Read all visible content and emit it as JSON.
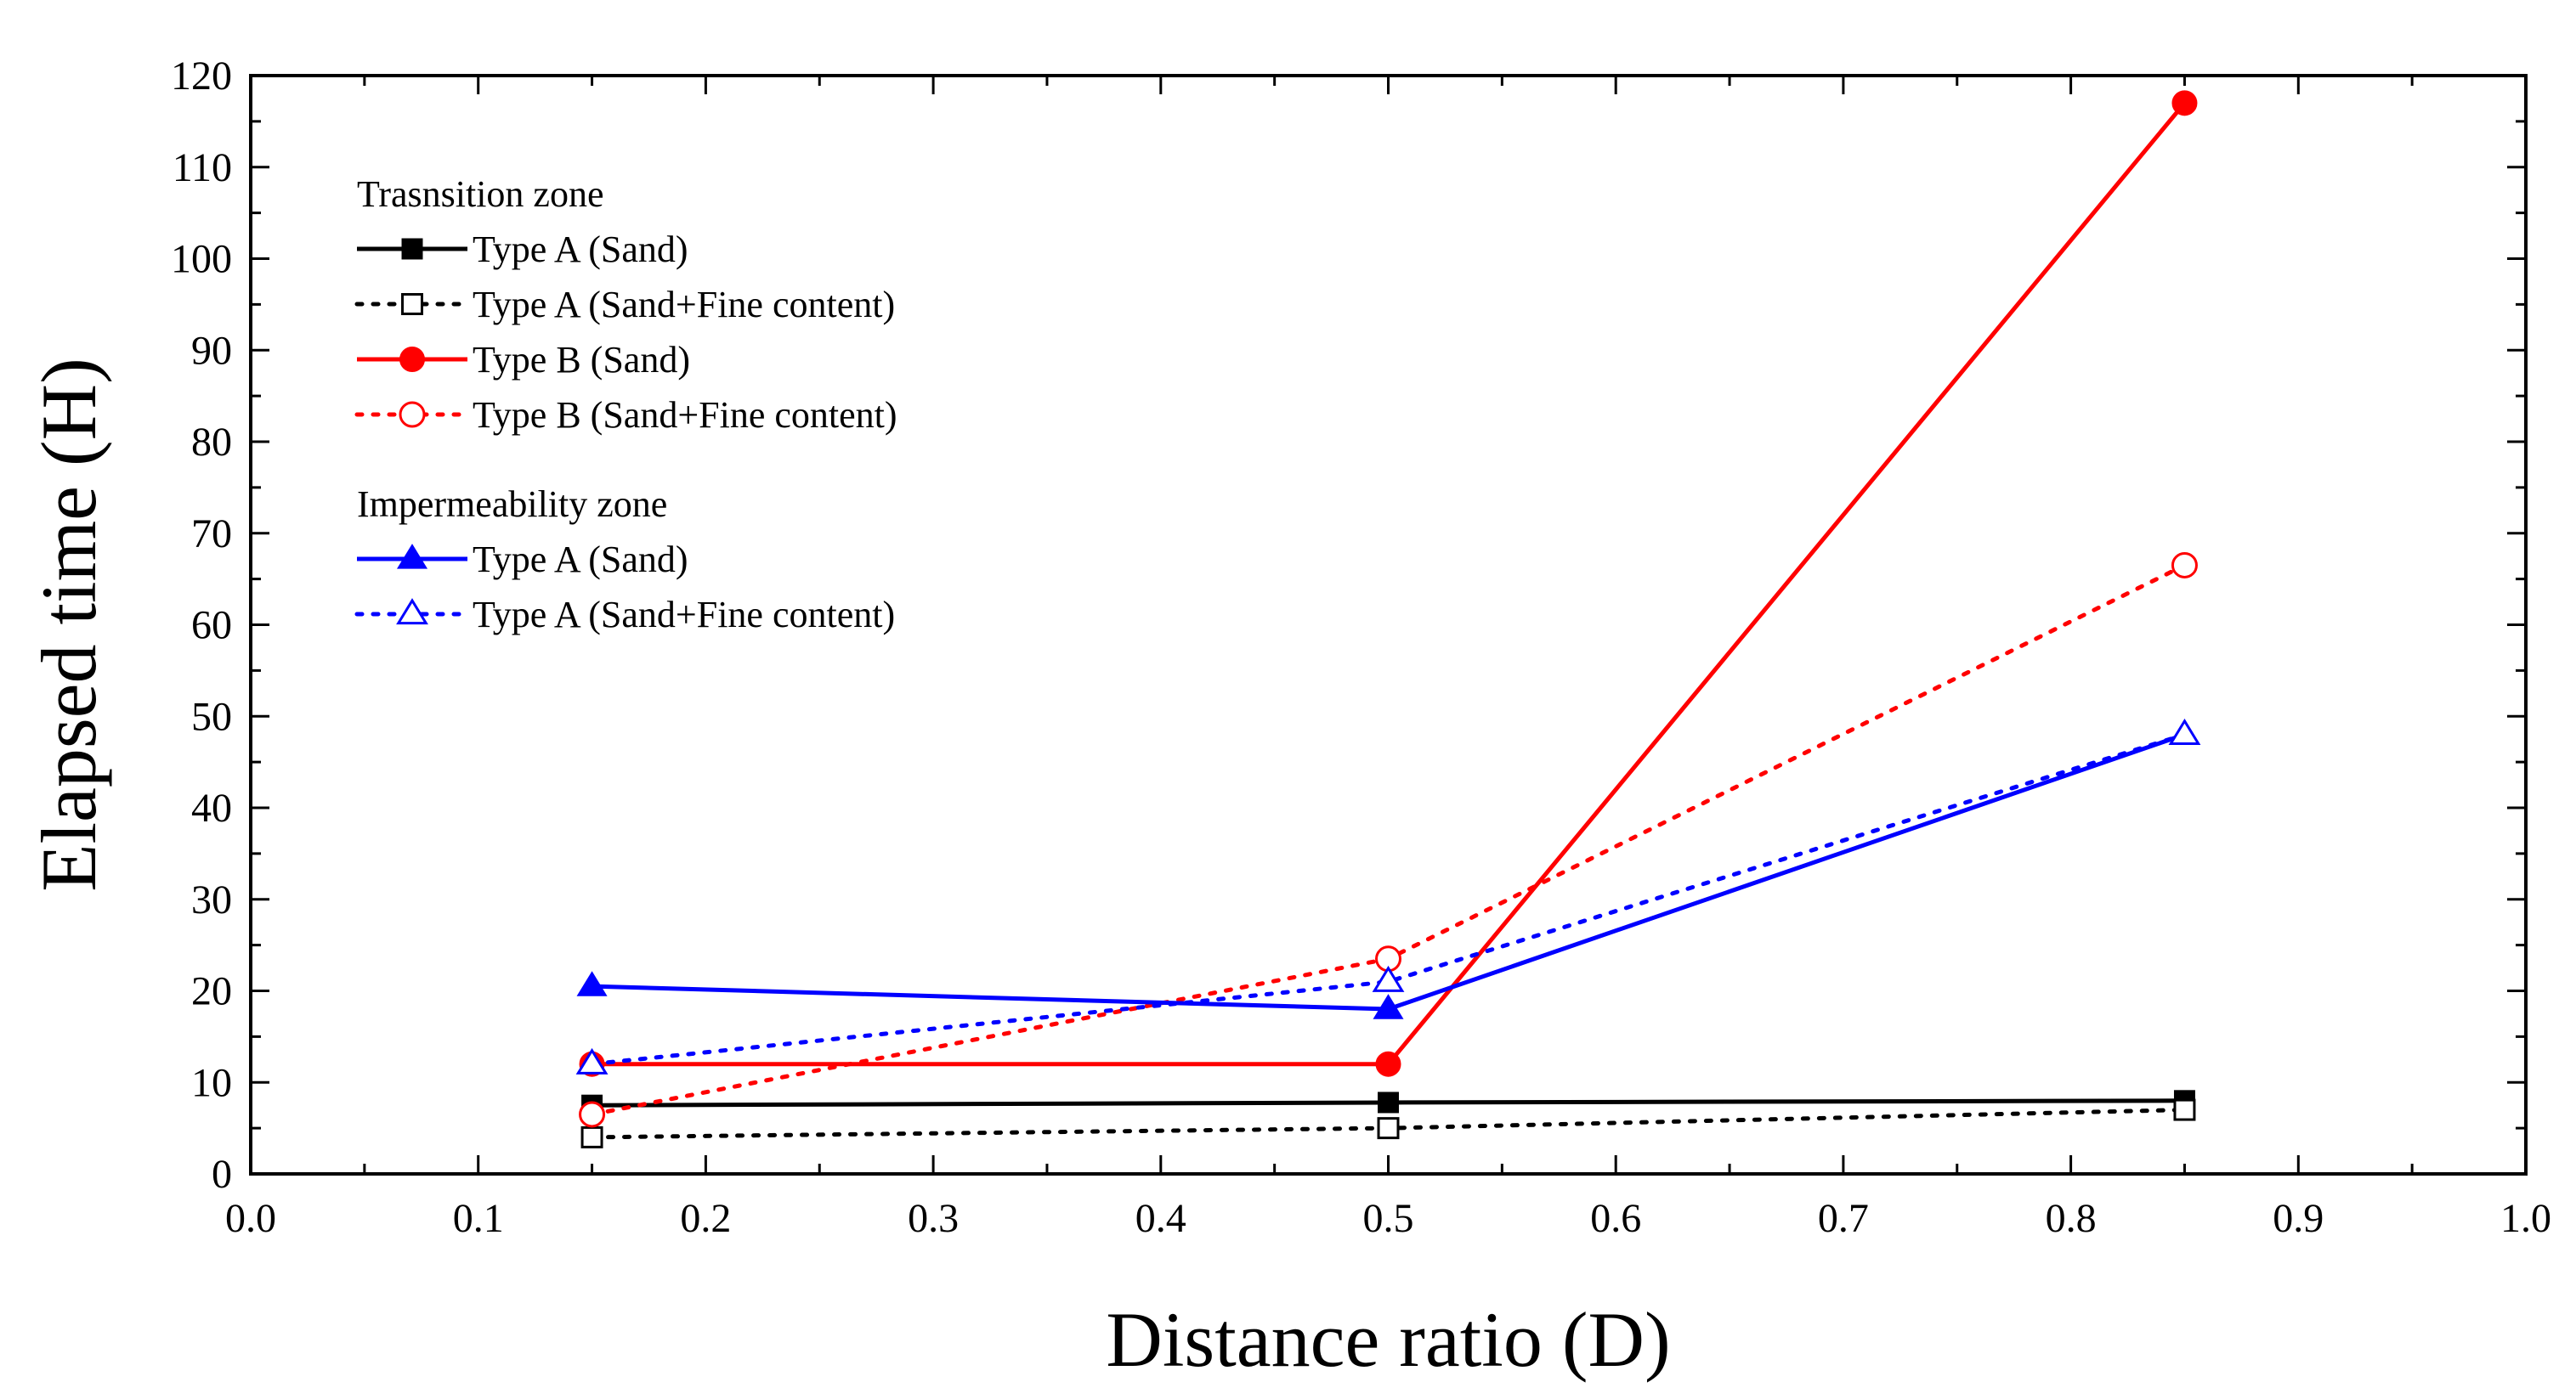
{
  "chart_data": {
    "type": "line",
    "title": "",
    "xlabel": "Distance ratio (D)",
    "ylabel": "Elapsed time (H)",
    "xlim": [
      0.0,
      1.0
    ],
    "ylim": [
      0,
      120
    ],
    "xticks": [
      "0.0",
      "0.1",
      "0.2",
      "0.3",
      "0.4",
      "0.5",
      "0.6",
      "0.7",
      "0.8",
      "0.9",
      "1.0"
    ],
    "yticks": [
      "0",
      "10",
      "20",
      "30",
      "40",
      "50",
      "60",
      "70",
      "80",
      "90",
      "100",
      "110",
      "120"
    ],
    "grid": false,
    "legend_placement": "top-left",
    "legend_groups": [
      {
        "heading": "Trasnsition zone",
        "series": [
          0,
          1,
          2,
          3
        ]
      },
      {
        "heading": "Impermeability zone",
        "series": [
          4,
          5
        ]
      }
    ],
    "series": [
      {
        "name": "Type A (Sand)",
        "x": [
          0.15,
          0.5,
          0.85
        ],
        "y": [
          7.5,
          7.8,
          8.0
        ],
        "color": "#000000",
        "line": "solid",
        "marker": "square",
        "filled": true
      },
      {
        "name": "Type A (Sand+Fine content)",
        "x": [
          0.15,
          0.5,
          0.85
        ],
        "y": [
          4.0,
          5.0,
          7.0
        ],
        "color": "#000000",
        "line": "dotted",
        "marker": "square",
        "filled": false
      },
      {
        "name": "Type B (Sand)",
        "x": [
          0.15,
          0.5,
          0.85
        ],
        "y": [
          12.0,
          12.0,
          117.0
        ],
        "color": "#ff0000",
        "line": "solid",
        "marker": "circle",
        "filled": true
      },
      {
        "name": "Type B (Sand+Fine content)",
        "x": [
          0.15,
          0.5,
          0.85
        ],
        "y": [
          6.5,
          23.5,
          66.5
        ],
        "color": "#ff0000",
        "line": "dotted",
        "marker": "circle",
        "filled": false
      },
      {
        "name": "Type A (Sand)",
        "x": [
          0.15,
          0.5,
          0.85
        ],
        "y": [
          20.5,
          18.0,
          48.0
        ],
        "color": "#0000ff",
        "line": "solid",
        "marker": "triangle",
        "filled": true
      },
      {
        "name": "Type A (Sand+Fine content)",
        "x": [
          0.15,
          0.5,
          0.85
        ],
        "y": [
          12.0,
          21.0,
          48.0
        ],
        "color": "#0000ff",
        "line": "dotted",
        "marker": "triangle",
        "filled": false
      }
    ]
  }
}
